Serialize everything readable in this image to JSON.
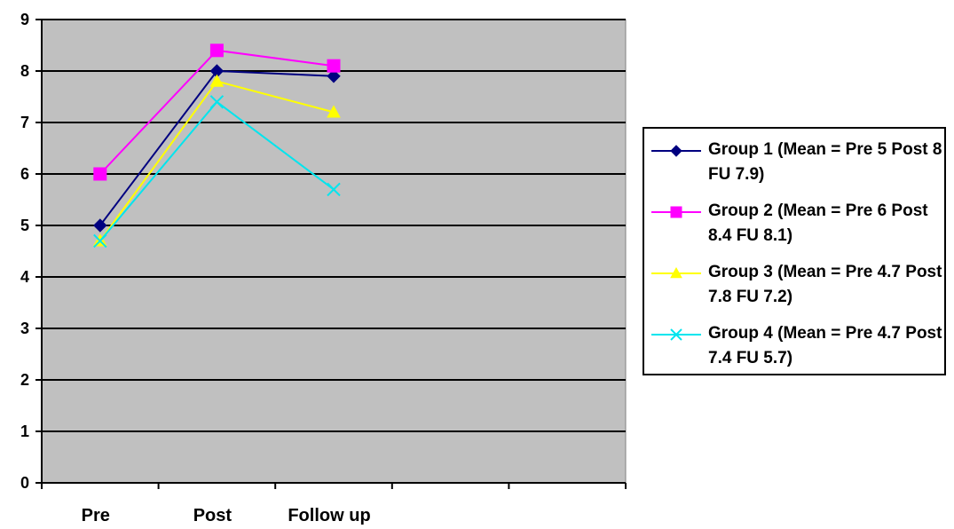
{
  "chart_data": {
    "type": "line",
    "categories": [
      "Pre",
      "Post",
      "Follow up"
    ],
    "ylim": [
      0,
      9
    ],
    "yticks": [
      "0",
      "1",
      "2",
      "3",
      "4",
      "5",
      "6",
      "7",
      "8",
      "9"
    ],
    "grid": true,
    "legend_position": "right",
    "plot_background": "#c0c0c0",
    "series": [
      {
        "name": "Group 1 (Mean = Pre 5 Post 8 FU 7.9)",
        "values": [
          5,
          8,
          7.9
        ],
        "color": "#000080",
        "marker": "diamond"
      },
      {
        "name": "Group 2 (Mean = Pre 6 Post 8.4 FU 8.1)",
        "values": [
          6,
          8.4,
          8.1
        ],
        "color": "#ff00ff",
        "marker": "square"
      },
      {
        "name": "Group 3 (Mean = Pre 4.7 Post 7.8 FU 7.2)",
        "values": [
          4.7,
          7.8,
          7.2
        ],
        "color": "#ffff00",
        "marker": "triangle"
      },
      {
        "name": "Group 4 (Mean = Pre 4.7 Post 7.4 FU 5.7)",
        "values": [
          4.7,
          7.4,
          5.7
        ],
        "color": "#00e5ee",
        "marker": "x"
      }
    ]
  }
}
